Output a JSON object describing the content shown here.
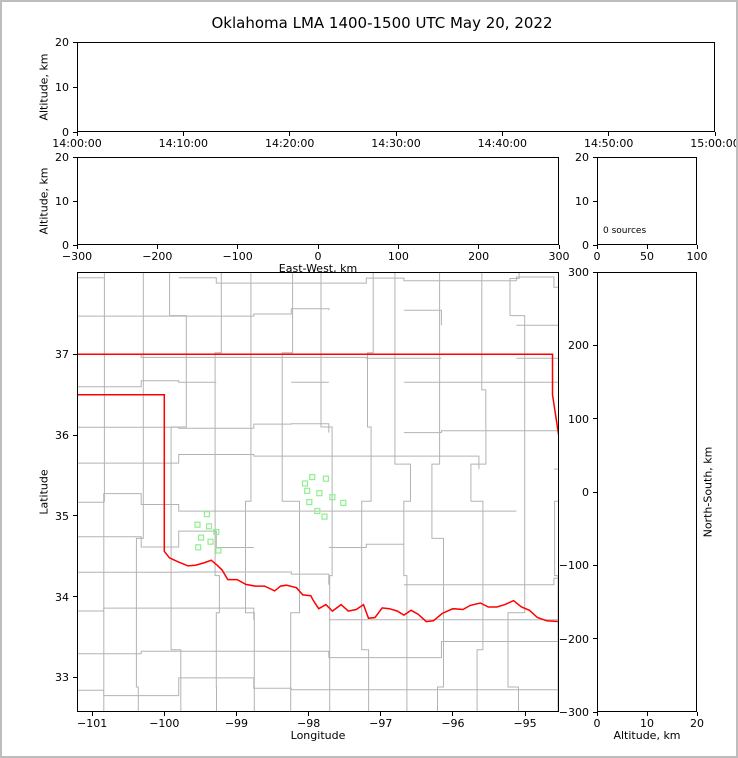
{
  "figure": {
    "title": "Oklahoma LMA 1400-1500 UTC May 20, 2022",
    "background_color": "#ffffff",
    "frame_color": "#bdbdbd",
    "axis_color": "#000000"
  },
  "chart_data": [
    {
      "id": "time_height",
      "name": "time-height-panel",
      "type": "scatter",
      "title": "",
      "xlabel": "",
      "ylabel": "Altitude, km",
      "ylabel_side": "left",
      "xlim": [
        0,
        60
      ],
      "ylim": [
        0,
        20
      ],
      "xticks": [
        {
          "v": 0,
          "label": "14:00:00"
        },
        {
          "v": 10,
          "label": "14:10:00"
        },
        {
          "v": 20,
          "label": "14:20:00"
        },
        {
          "v": 30,
          "label": "14:30:00"
        },
        {
          "v": 40,
          "label": "14:40:00"
        },
        {
          "v": 50,
          "label": "14:50:00"
        },
        {
          "v": 60,
          "label": "15:00:00"
        }
      ],
      "yticks": [
        {
          "v": 0,
          "label": "0"
        },
        {
          "v": 10,
          "label": "10"
        },
        {
          "v": 20,
          "label": "20"
        }
      ],
      "grid": false,
      "points": []
    },
    {
      "id": "ew_height",
      "name": "east-west-height-panel",
      "type": "scatter",
      "xlabel": "East-West, km",
      "ylabel": "Altitude, km",
      "ylabel_side": "left",
      "xlim": [
        -300,
        300
      ],
      "ylim": [
        0,
        20
      ],
      "xticks": [
        {
          "v": -300,
          "label": "−300"
        },
        {
          "v": -200,
          "label": "−200"
        },
        {
          "v": -100,
          "label": "−100"
        },
        {
          "v": 0,
          "label": "0"
        },
        {
          "v": 100,
          "label": "100"
        },
        {
          "v": 200,
          "label": "200"
        },
        {
          "v": 300,
          "label": "300"
        }
      ],
      "yticks": [
        {
          "v": 0,
          "label": "0"
        },
        {
          "v": 10,
          "label": "10"
        },
        {
          "v": 20,
          "label": "20"
        }
      ],
      "grid": false,
      "points": []
    },
    {
      "id": "src_hist",
      "name": "altitude-histogram-panel",
      "type": "line",
      "xlabel": "",
      "ylabel": "",
      "xlim": [
        0,
        100
      ],
      "ylim": [
        0,
        20
      ],
      "xticks": [
        {
          "v": 0,
          "label": "0"
        },
        {
          "v": 50,
          "label": "50"
        },
        {
          "v": 100,
          "label": "100"
        }
      ],
      "yticks": [
        {
          "v": 0,
          "label": "0"
        },
        {
          "v": 10,
          "label": "10"
        },
        {
          "v": 20,
          "label": "20"
        }
      ],
      "annotation": {
        "text": "0 sources",
        "x": 6,
        "y": 3.2
      },
      "grid": false,
      "points": []
    },
    {
      "id": "plan_map",
      "name": "plan-view-map-panel",
      "type": "scatter",
      "xlabel": "Longitude",
      "ylabel": "Latitude",
      "ylabel_side": "left",
      "xlim": [
        -101.21,
        -94.53
      ],
      "ylim": [
        32.57,
        38.02
      ],
      "xticks": [
        {
          "v": -101,
          "label": "−101"
        },
        {
          "v": -100,
          "label": "−100"
        },
        {
          "v": -99,
          "label": "−99"
        },
        {
          "v": -98,
          "label": "−98"
        },
        {
          "v": -97,
          "label": "−97"
        },
        {
          "v": -96,
          "label": "−96"
        },
        {
          "v": -95,
          "label": "−95"
        }
      ],
      "yticks": [
        {
          "v": 33,
          "label": "33"
        },
        {
          "v": 34,
          "label": "34"
        },
        {
          "v": 35,
          "label": "35"
        },
        {
          "v": 36,
          "label": "36"
        },
        {
          "v": 37,
          "label": "37"
        }
      ],
      "marker": "open-square",
      "marker_color": "#90EE90",
      "marker_size": 5,
      "points": [
        [
          -99.41,
          35.02
        ],
        [
          -99.54,
          34.89
        ],
        [
          -99.38,
          34.87
        ],
        [
          -99.28,
          34.8
        ],
        [
          -99.49,
          34.73
        ],
        [
          -99.36,
          34.68
        ],
        [
          -99.53,
          34.61
        ],
        [
          -99.25,
          34.57
        ],
        [
          -98.05,
          35.4
        ],
        [
          -97.95,
          35.48
        ],
        [
          -97.76,
          35.46
        ],
        [
          -98.02,
          35.31
        ],
        [
          -97.85,
          35.28
        ],
        [
          -97.67,
          35.23
        ],
        [
          -97.99,
          35.17
        ],
        [
          -97.52,
          35.16
        ],
        [
          -97.88,
          35.06
        ],
        [
          -97.78,
          34.99
        ]
      ],
      "county_lines": {
        "color": "#b3b3b3",
        "width": 1
      },
      "state_boundary": {
        "color": "#ff0000",
        "width": 1.5,
        "polylines": [
          [
            [
              -101.21,
              37.0
            ],
            [
              -94.62,
              37.0
            ],
            [
              -94.62,
              36.5
            ],
            [
              -94.53,
              35.97
            ]
          ],
          [
            [
              -101.21,
              36.5
            ],
            [
              -100.0,
              36.5
            ],
            [
              -100.0,
              34.56
            ],
            [
              -99.93,
              34.48
            ],
            [
              -99.81,
              34.43
            ],
            [
              -99.67,
              34.38
            ],
            [
              -99.56,
              34.39
            ],
            [
              -99.44,
              34.42
            ],
            [
              -99.35,
              34.45
            ],
            [
              -99.27,
              34.39
            ],
            [
              -99.2,
              34.33
            ],
            [
              -99.12,
              34.21
            ],
            [
              -98.99,
              34.21
            ],
            [
              -98.87,
              34.15
            ],
            [
              -98.74,
              34.13
            ],
            [
              -98.61,
              34.13
            ],
            [
              -98.47,
              34.07
            ],
            [
              -98.39,
              34.13
            ],
            [
              -98.31,
              34.14
            ],
            [
              -98.17,
              34.11
            ],
            [
              -98.08,
              34.02
            ],
            [
              -97.97,
              34.01
            ],
            [
              -97.94,
              33.96
            ],
            [
              -97.86,
              33.85
            ],
            [
              -97.76,
              33.9
            ],
            [
              -97.67,
              33.82
            ],
            [
              -97.55,
              33.9
            ],
            [
              -97.45,
              33.82
            ],
            [
              -97.34,
              33.84
            ],
            [
              -97.24,
              33.9
            ],
            [
              -97.17,
              33.73
            ],
            [
              -97.08,
              33.74
            ],
            [
              -96.98,
              33.86
            ],
            [
              -96.88,
              33.85
            ],
            [
              -96.77,
              33.82
            ],
            [
              -96.68,
              33.77
            ],
            [
              -96.58,
              33.83
            ],
            [
              -96.48,
              33.78
            ],
            [
              -96.37,
              33.69
            ],
            [
              -96.27,
              33.7
            ],
            [
              -96.15,
              33.79
            ],
            [
              -96.0,
              33.85
            ],
            [
              -95.86,
              33.84
            ],
            [
              -95.76,
              33.89
            ],
            [
              -95.62,
              33.92
            ],
            [
              -95.51,
              33.87
            ],
            [
              -95.39,
              33.87
            ],
            [
              -95.28,
              33.9
            ],
            [
              -95.16,
              33.95
            ],
            [
              -95.05,
              33.87
            ],
            [
              -94.94,
              33.83
            ],
            [
              -94.83,
              33.74
            ],
            [
              -94.7,
              33.7
            ],
            [
              -94.53,
              33.69
            ]
          ]
        ]
      }
    },
    {
      "id": "ns_height",
      "name": "height-north-south-panel",
      "type": "scatter",
      "xlabel": "Altitude, km",
      "ylabel": "North-South, km",
      "ylabel_side": "right",
      "xlim": [
        0,
        20
      ],
      "ylim": [
        -300,
        300
      ],
      "xticks": [
        {
          "v": 0,
          "label": "0"
        },
        {
          "v": 10,
          "label": "10"
        },
        {
          "v": 20,
          "label": "20"
        }
      ],
      "yticks": [
        {
          "v": -300,
          "label": "−300"
        },
        {
          "v": -200,
          "label": "−200"
        },
        {
          "v": -100,
          "label": "−100"
        },
        {
          "v": 0,
          "label": "0"
        },
        {
          "v": 100,
          "label": "100"
        },
        {
          "v": 200,
          "label": "200"
        },
        {
          "v": 300,
          "label": "300"
        }
      ],
      "grid": false,
      "points": []
    }
  ]
}
